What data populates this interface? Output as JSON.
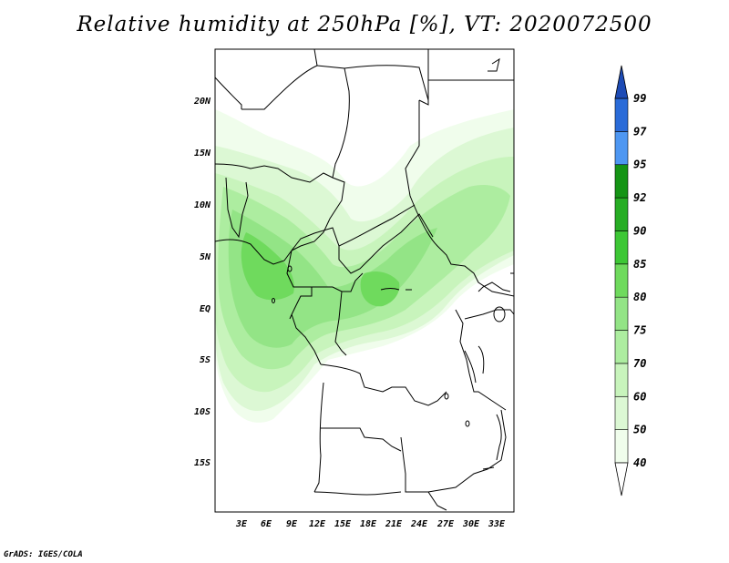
{
  "title": "Relative humidity at 250hPa [%], VT: 2020072500",
  "credit": "GrADS: IGES/COLA",
  "colors": {
    "rh40": "#f0fdec",
    "rh50": "#dcf8d4",
    "rh60": "#c8f4bc",
    "rh70": "#adedA0",
    "rh75": "#93e486",
    "rh80": "#6fda5d",
    "rh85": "#3dc735",
    "rh90": "#27ad24",
    "rh92": "#159415",
    "rh95": "#4e97f2",
    "rh97": "#2a6bd8",
    "rh99": "#1d4bb5",
    "border": "#000000"
  },
  "map": {
    "lat_labels": [
      "20N",
      "15N",
      "10N",
      "5N",
      "EQ",
      "5S",
      "10S",
      "15S"
    ],
    "lon_labels": [
      "3E",
      "6E",
      "9E",
      "12E",
      "15E",
      "18E",
      "21E",
      "24E",
      "27E",
      "30E",
      "33E"
    ]
  },
  "colorbar": {
    "levels": [
      "40",
      "50",
      "60",
      "70",
      "75",
      "80",
      "85",
      "90",
      "92",
      "95",
      "97",
      "99"
    ],
    "colors": [
      "#f0fdec",
      "#dcf8d4",
      "#c8f4bc",
      "#adeda0",
      "#93e486",
      "#6fda5d",
      "#3dc735",
      "#27ad24",
      "#159415",
      "#4e97f2",
      "#2a6bd8",
      "#1d4bb5"
    ]
  }
}
